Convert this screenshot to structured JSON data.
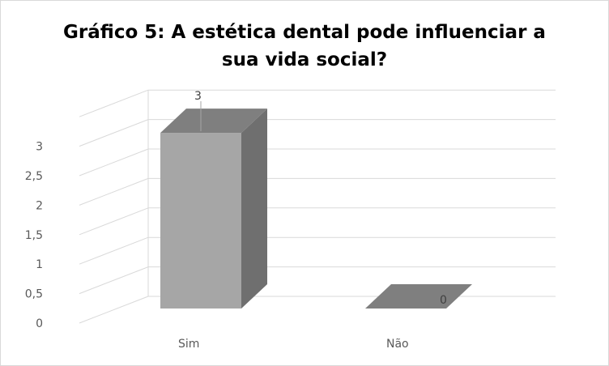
{
  "chart_data": {
    "type": "bar",
    "title": "Gráfico 5: A estética dental pode influenciar a sua vida social?",
    "categories": [
      "Sim",
      "Não"
    ],
    "values": [
      3,
      0
    ],
    "data_labels": [
      "3",
      "0"
    ],
    "yticks": [
      "0",
      "0,5",
      "1",
      "1,5",
      "2",
      "2,5",
      "3"
    ],
    "ylim": [
      0,
      3.5
    ],
    "grid": true,
    "three_d": true,
    "legend": "none",
    "colors": {
      "front": "#a6a6a6",
      "side": "#6f6f6f",
      "top": "#7f7f7f",
      "grid": "#d9d9d9"
    }
  }
}
